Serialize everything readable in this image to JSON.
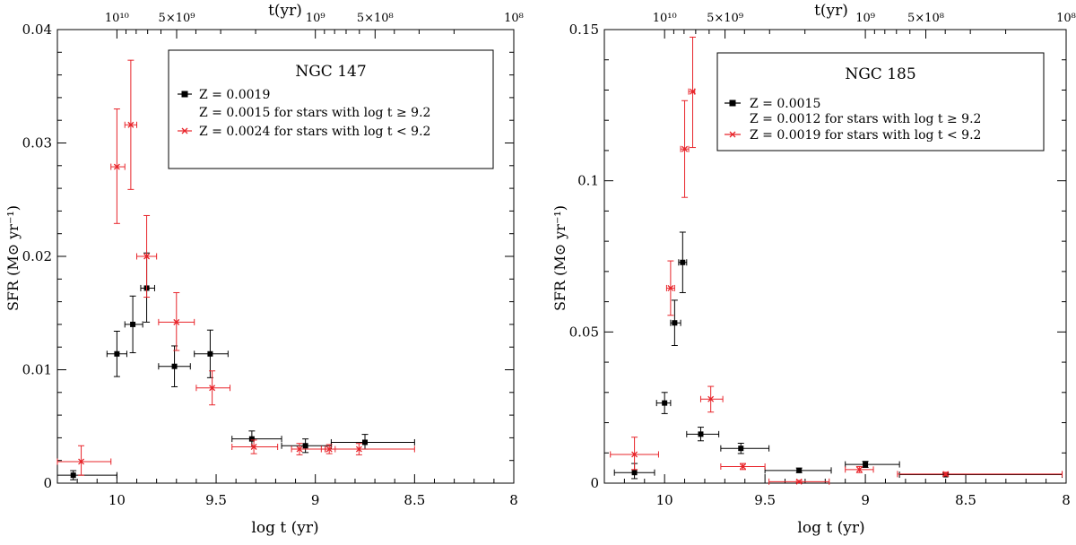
{
  "chart_data": [
    {
      "type": "scatter",
      "title": "NGC 147",
      "xlabel": "log t (yr)",
      "ylabel": "SFR (M⊙ yr⁻¹)",
      "top_axis_label": "t(yr)",
      "xlim": [
        10.3,
        8.0
      ],
      "ylim": [
        0,
        0.04
      ],
      "x_ticks": [
        "10",
        "9.5",
        "9",
        "8.5",
        "8"
      ],
      "y_ticks": [
        "0",
        "0.01",
        "0.02",
        "0.03",
        "0.04"
      ],
      "top_ticks": [
        "10¹⁰",
        "5×10⁹",
        "10⁹",
        "5×10⁸",
        "10⁸"
      ],
      "legend_placement": "top-right",
      "grid": false,
      "series": [
        {
          "name": "Z = 0.0019",
          "name_line2": "Z = 0.0015 for stars with log t ≥ 9.2",
          "color": "#000000",
          "marker": "square",
          "points": [
            {
              "x": 10.22,
              "y": 0.0007,
              "xlo": 10.3,
              "xhi": 10.0,
              "ylo": 0.0003,
              "yhi": 0.0011
            },
            {
              "x": 10.0,
              "y": 0.0114,
              "xlo": 10.05,
              "xhi": 9.95,
              "ylo": 0.0094,
              "yhi": 0.0134
            },
            {
              "x": 9.92,
              "y": 0.014,
              "xlo": 9.96,
              "xhi": 9.87,
              "ylo": 0.0115,
              "yhi": 0.0165
            },
            {
              "x": 9.85,
              "y": 0.0172,
              "xlo": 9.88,
              "xhi": 9.81,
              "ylo": 0.0142,
              "yhi": 0.0203
            },
            {
              "x": 9.71,
              "y": 0.0103,
              "xlo": 9.79,
              "xhi": 9.63,
              "ylo": 0.0085,
              "yhi": 0.0121
            },
            {
              "x": 9.53,
              "y": 0.0114,
              "xlo": 9.61,
              "xhi": 9.44,
              "ylo": 0.0093,
              "yhi": 0.0135
            },
            {
              "x": 9.32,
              "y": 0.0039,
              "xlo": 9.42,
              "xhi": 9.17,
              "ylo": 0.0032,
              "yhi": 0.0046
            },
            {
              "x": 9.05,
              "y": 0.0033,
              "xlo": 9.17,
              "xhi": 8.92,
              "ylo": 0.0027,
              "yhi": 0.0039
            },
            {
              "x": 8.75,
              "y": 0.0036,
              "xlo": 8.92,
              "xhi": 8.5,
              "ylo": 0.003,
              "yhi": 0.0043
            }
          ]
        },
        {
          "name": "Z = 0.0024 for stars with log t < 9.2",
          "color": "#e8242a",
          "marker": "cross",
          "points": [
            {
              "x": 10.18,
              "y": 0.0019,
              "xlo": 10.3,
              "xhi": 10.03,
              "ylo": 0.0007,
              "yhi": 0.0033
            },
            {
              "x": 10.0,
              "y": 0.0279,
              "xlo": 10.03,
              "xhi": 9.96,
              "ylo": 0.0229,
              "yhi": 0.033
            },
            {
              "x": 9.93,
              "y": 0.0316,
              "xlo": 9.96,
              "xhi": 9.9,
              "ylo": 0.0259,
              "yhi": 0.0373
            },
            {
              "x": 9.85,
              "y": 0.02,
              "xlo": 9.9,
              "xhi": 9.8,
              "ylo": 0.0164,
              "yhi": 0.0236
            },
            {
              "x": 9.7,
              "y": 0.0142,
              "xlo": 9.79,
              "xhi": 9.61,
              "ylo": 0.0117,
              "yhi": 0.0168
            },
            {
              "x": 9.52,
              "y": 0.0084,
              "xlo": 9.6,
              "xhi": 9.43,
              "ylo": 0.0069,
              "yhi": 0.0099
            },
            {
              "x": 9.31,
              "y": 0.0032,
              "xlo": 9.42,
              "xhi": 9.19,
              "ylo": 0.0026,
              "yhi": 0.0038
            },
            {
              "x": 9.08,
              "y": 0.003,
              "xlo": 9.12,
              "xhi": 8.95,
              "ylo": 0.0025,
              "yhi": 0.0035
            },
            {
              "x": 8.93,
              "y": 0.003,
              "xlo": 8.97,
              "xhi": 8.9,
              "ylo": 0.0026,
              "yhi": 0.0034
            },
            {
              "x": 8.78,
              "y": 0.003,
              "xlo": 8.95,
              "xhi": 8.5,
              "ylo": 0.0025,
              "yhi": 0.0035
            }
          ]
        }
      ]
    },
    {
      "type": "scatter",
      "title": "NGC 185",
      "xlabel": "log t (yr)",
      "ylabel": "SFR (M⊙ yr⁻¹)",
      "top_axis_label": "t(yr)",
      "xlim": [
        10.3,
        8.0
      ],
      "ylim": [
        0,
        0.15
      ],
      "x_ticks": [
        "10",
        "9.5",
        "9",
        "8.5",
        "8"
      ],
      "y_ticks": [
        "0",
        "0.05",
        "0.1",
        "0.15"
      ],
      "top_ticks": [
        "10¹⁰",
        "5×10⁹",
        "10⁹",
        "5×10⁸",
        "10⁸"
      ],
      "legend_placement": "top-right",
      "grid": false,
      "series": [
        {
          "name": "Z = 0.0015",
          "name_line2": "Z = 0.0012 for stars with log t ≥ 9.2",
          "color": "#000000",
          "marker": "square",
          "points": [
            {
              "x": 10.15,
              "y": 0.0035,
              "xlo": 10.25,
              "xhi": 10.05,
              "ylo": 0.0015,
              "yhi": 0.0065
            },
            {
              "x": 10.0,
              "y": 0.0265,
              "xlo": 10.04,
              "xhi": 9.97,
              "ylo": 0.023,
              "yhi": 0.03
            },
            {
              "x": 9.95,
              "y": 0.053,
              "xlo": 9.97,
              "xhi": 9.92,
              "ylo": 0.0455,
              "yhi": 0.0605
            },
            {
              "x": 9.91,
              "y": 0.073,
              "xlo": 9.93,
              "xhi": 9.89,
              "ylo": 0.063,
              "yhi": 0.083
            },
            {
              "x": 9.82,
              "y": 0.0162,
              "xlo": 9.89,
              "xhi": 9.73,
              "ylo": 0.014,
              "yhi": 0.0185
            },
            {
              "x": 9.62,
              "y": 0.0115,
              "xlo": 9.72,
              "xhi": 9.48,
              "ylo": 0.0098,
              "yhi": 0.0132
            },
            {
              "x": 9.33,
              "y": 0.0042,
              "xlo": 9.5,
              "xhi": 9.17,
              "ylo": 0.0035,
              "yhi": 0.005
            },
            {
              "x": 9.0,
              "y": 0.0062,
              "xlo": 9.1,
              "xhi": 8.83,
              "ylo": 0.0052,
              "yhi": 0.0072
            },
            {
              "x": 8.6,
              "y": 0.0028,
              "xlo": 8.83,
              "xhi": 8.02,
              "ylo": 0.0023,
              "yhi": 0.0033
            }
          ]
        },
        {
          "name": "Z = 0.0019 for stars with log t < 9.2",
          "color": "#e8242a",
          "marker": "cross",
          "points": [
            {
              "x": 10.15,
              "y": 0.0095,
              "xlo": 10.27,
              "xhi": 10.03,
              "ylo": 0.0045,
              "yhi": 0.0152
            },
            {
              "x": 9.97,
              "y": 0.0645,
              "xlo": 9.99,
              "xhi": 9.95,
              "ylo": 0.0555,
              "yhi": 0.0735
            },
            {
              "x": 9.9,
              "y": 0.1105,
              "xlo": 9.92,
              "xhi": 9.88,
              "ylo": 0.0945,
              "yhi": 0.1265
            },
            {
              "x": 9.86,
              "y": 0.1295,
              "xlo": 9.88,
              "xhi": 9.85,
              "ylo": 0.111,
              "yhi": 0.1475
            },
            {
              "x": 9.77,
              "y": 0.0278,
              "xlo": 9.82,
              "xhi": 9.71,
              "ylo": 0.0235,
              "yhi": 0.032
            },
            {
              "x": 9.61,
              "y": 0.0055,
              "xlo": 9.72,
              "xhi": 9.5,
              "ylo": 0.0045,
              "yhi": 0.0065
            },
            {
              "x": 9.33,
              "y": 0.0005,
              "xlo": 9.48,
              "xhi": 9.18,
              "ylo": 0.0002,
              "yhi": 0.0009
            },
            {
              "x": 9.03,
              "y": 0.0045,
              "xlo": 9.1,
              "xhi": 8.96,
              "ylo": 0.0035,
              "yhi": 0.0055
            },
            {
              "x": 8.6,
              "y": 0.003,
              "xlo": 8.84,
              "xhi": 8.02,
              "ylo": 0.0024,
              "yhi": 0.0036
            }
          ]
        }
      ]
    }
  ]
}
